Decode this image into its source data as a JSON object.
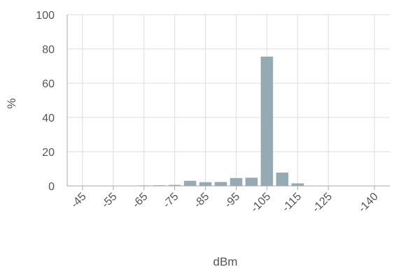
{
  "chart_data": {
    "type": "bar",
    "xlabel": "dBm",
    "ylabel": "%",
    "ylim": [
      0,
      100
    ],
    "yticks": [
      "0",
      "20",
      "40",
      "60",
      "80",
      "100"
    ],
    "xlim": [
      -40,
      -145
    ],
    "xticks": [
      "-45",
      "-55",
      "-65",
      "-75",
      "-85",
      "-95",
      "-105",
      "-115",
      "-125",
      "-140"
    ],
    "x": [
      -65,
      -70,
      -75,
      -80,
      -85,
      -90,
      -95,
      -100,
      -105,
      -110,
      -115,
      -120
    ],
    "values": [
      0.3,
      0.4,
      0.6,
      3.0,
      2.2,
      2.3,
      4.6,
      4.8,
      75.5,
      7.8,
      1.5,
      0.2
    ],
    "grid": true,
    "colors": {
      "bar": "#95abb3",
      "grid": "#dddddd",
      "axis": "#aaaaaa",
      "text": "#555555"
    }
  }
}
